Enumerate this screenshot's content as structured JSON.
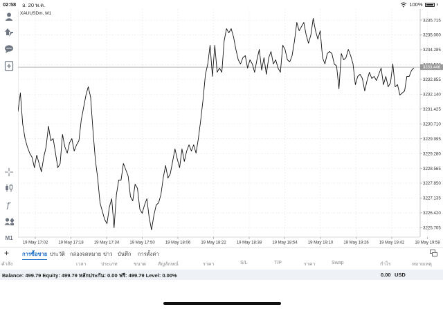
{
  "status_bar": {
    "time": "02:58",
    "date": "อ. 20 พ.ค.",
    "battery": "100%"
  },
  "chart": {
    "symbol_label": "XAUUSDm, M1",
    "current_price": "3233.446",
    "y_ticks": [
      "3235.715",
      "3235.000",
      "3234.285",
      "3233.570",
      "3232.855",
      "3232.140",
      "3231.425",
      "3230.710",
      "3229.995",
      "3229.280",
      "3228.565",
      "3227.850",
      "3227.135",
      "3226.420",
      "3225.705"
    ],
    "x_ticks": [
      "19 May 17:02",
      "19 May 17:18",
      "19 May 17:34",
      "19 May 17:50",
      "19 May 18:06",
      "19 May 18:22",
      "19 May 18:38",
      "19 May 18:54",
      "19 May 19:10",
      "19 May 19:26",
      "19 May 19:42",
      "19 May 19:58"
    ]
  },
  "chart_data": {
    "type": "line",
    "title": "XAUUSDm, M1",
    "xlabel": "",
    "ylabel": "",
    "ylim": [
      3225.25,
      3236.25
    ],
    "x_range_minutes": [
      0,
      60
    ],
    "x_tick_labels": [
      "19 May 17:02",
      "19 May 17:18",
      "19 May 17:34",
      "19 May 17:50",
      "19 May 18:06",
      "19 May 18:22",
      "19 May 18:38",
      "19 May 18:54",
      "19 May 19:10",
      "19 May 19:26",
      "19 May 19:42",
      "19 May 19:58"
    ],
    "series": [
      {
        "values": [
          3231.3,
          3232.2,
          3230.7,
          3230.0,
          3229.6,
          3229.3,
          3229.1,
          3228.6,
          3229.2,
          3228.8,
          3228.4,
          3229.1,
          3229.6,
          3230.6,
          3229.9,
          3230.0,
          3229.3,
          3228.6,
          3228.8,
          3230.2,
          3229.6,
          3229.3,
          3229.8,
          3230.0,
          3229.4,
          3229.7,
          3229.9,
          3230.9,
          3231.5,
          3232.1,
          3232.5,
          3232.0,
          3230.4,
          3229.0,
          3228.1,
          3226.9,
          3226.5,
          3226.1,
          3225.9,
          3226.7,
          3227.1,
          3225.7,
          3227.3,
          3228.0,
          3228.0,
          3228.8,
          3228.5,
          3228.2,
          3227.2,
          3227.0,
          3227.8,
          3227.6,
          3226.6,
          3226.4,
          3226.8,
          3227.1,
          3226.2,
          3225.6,
          3226.3,
          3226.8,
          3226.9,
          3227.3,
          3228.1,
          3228.7,
          3228.1,
          3228.3,
          3228.9,
          3229.5,
          3229.0,
          3228.6,
          3229.5,
          3228.9,
          3229.4,
          3229.7,
          3229.4,
          3229.7,
          3229.3,
          3230.0,
          3230.9,
          3231.9,
          3233.1,
          3233.6,
          3234.5,
          3233.0,
          3234.5,
          3233.2,
          3233.4,
          3233.2,
          3234.7,
          3235.3,
          3235.1,
          3235.3,
          3234.9,
          3234.3,
          3233.8,
          3233.6,
          3233.9,
          3234.0,
          3233.4,
          3233.8,
          3233.6,
          3233.2,
          3233.8,
          3234.3,
          3233.3,
          3233.9,
          3233.1,
          3233.9,
          3234.2,
          3233.6,
          3233.8,
          3233.4,
          3233.2,
          3234.5,
          3234.3,
          3233.8,
          3233.7,
          3234.0,
          3234.7,
          3235.6,
          3235.2,
          3235.4,
          3235.6,
          3235.0,
          3234.6,
          3235.0,
          3235.8,
          3235.2,
          3234.8,
          3235.2,
          3233.9,
          3233.6,
          3234.1,
          3234.2,
          3234.1,
          3233.6,
          3233.5,
          3232.4,
          3234.1,
          3233.8,
          3233.9,
          3234.3,
          3234.0,
          3233.6,
          3232.6,
          3233.0,
          3233.1,
          3232.9,
          3232.3,
          3232.8,
          3233.2,
          3232.9,
          3233.0,
          3232.8,
          3233.1,
          3233.4,
          3232.6,
          3233.0,
          3232.5,
          3232.7,
          3233.6,
          3232.5,
          3232.6,
          3232.1,
          3232.2,
          3232.3,
          3233.0,
          3233.0,
          3233.3,
          3233.4
        ]
      }
    ]
  },
  "toolbar": {
    "icons": [
      "person-icon",
      "trade-icon",
      "chat-icon",
      "add-chart-icon",
      "crosshair-icon",
      "chart-type-icon",
      "indicator-icon",
      "objects-icon"
    ],
    "timeframe": "M1"
  },
  "tabs": {
    "add_label": "+",
    "items": [
      "การซื้อขาย",
      "ประวัติ",
      "กล่องจดหมาย",
      "ข่าว",
      "บันทึก",
      "การตั้งค่า"
    ],
    "active_index": 0
  },
  "columns": [
    "คำสั่ง",
    "เวลา",
    "ประเภท",
    "ขนาด",
    "สัญลักษณ์",
    "ราคา",
    "S/L",
    "T/P",
    "ราคา",
    "Swap",
    "กำไร",
    "หมายเหตุ"
  ],
  "balance_bar": {
    "text": "Balance: 499.79 Equity: 499.79 หลักประกัน: 0.00 ฟรี: 499.79 Level: 0.00%",
    "profit": "0.00",
    "currency": "USD"
  }
}
